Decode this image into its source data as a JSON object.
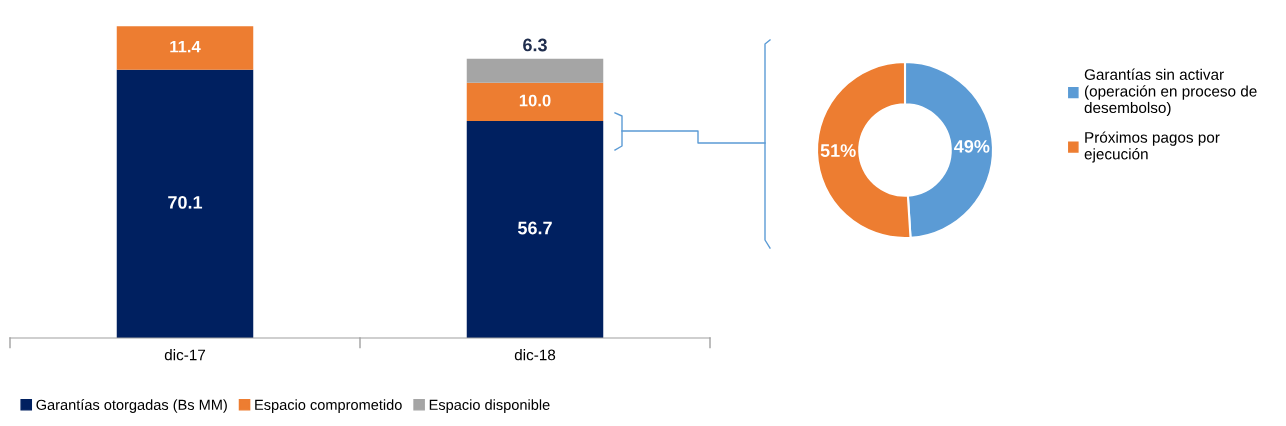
{
  "chart_data": [
    {
      "type": "bar",
      "stacked": true,
      "categories": [
        "dic-17",
        "dic-18"
      ],
      "series": [
        {
          "name": "Garantías otorgadas (Bs MM)",
          "color": "#002060",
          "values": [
            70.1,
            56.7
          ],
          "value_labels": [
            "70.1",
            "56.7"
          ]
        },
        {
          "name": "Espacio comprometido",
          "color": "#ed7d31",
          "values": [
            11.4,
            10.0
          ],
          "value_labels": [
            "11.4",
            "10.0"
          ]
        },
        {
          "name": "Espacio disponible",
          "color": "#a5a5a5",
          "values": [
            null,
            6.3
          ],
          "value_labels": [
            null,
            "6.3"
          ]
        }
      ],
      "legend": "bottom"
    },
    {
      "type": "donut",
      "categories": [
        "Garantías sin activar\n(operación en proceso de\ndesembolso)",
        "Próximos pagos por\nejecución"
      ],
      "values": [
        49,
        51
      ],
      "value_labels": [
        "49%",
        "51%"
      ],
      "colors": [
        "#5b9bd5",
        "#ed7d31"
      ],
      "legend": "right"
    }
  ]
}
